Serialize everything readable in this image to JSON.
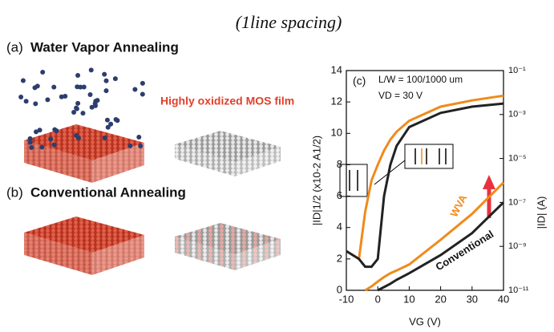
{
  "header": {
    "note": "(1line spacing)"
  },
  "panel_a": {
    "label": "(a)",
    "title": "Water Vapor Annealing",
    "film_label": "Highly oxidized MOS film"
  },
  "panel_b": {
    "label": "(b)",
    "title": "Conventional Annealing"
  },
  "chart_data": {
    "type": "line",
    "panel_label": "(c)",
    "annotations": [
      "L/W = 100/1000 um",
      "VD = 30 V"
    ],
    "xlabel": "VG (V)",
    "ylabel": "|ID|1/2 (x10-2 A1/2)",
    "y2label": "|ID| (A)",
    "x": [
      -10,
      -6,
      -4,
      -2,
      0,
      2,
      4,
      6,
      10,
      20,
      30,
      40
    ],
    "xlim": [
      -10,
      40
    ],
    "xticks": [
      -10,
      0,
      10,
      20,
      30,
      40
    ],
    "ylim": [
      0,
      14
    ],
    "yticks": [
      0,
      2,
      4,
      6,
      8,
      10,
      12,
      14
    ],
    "y2lim": [
      1e-11,
      0.1
    ],
    "y2scale": "log",
    "y2ticks": [
      {
        "value": 1e-11,
        "label": "10⁻¹¹"
      },
      {
        "value": 1e-09,
        "label": "10⁻⁹"
      },
      {
        "value": 1e-07,
        "label": "10⁻⁷"
      },
      {
        "value": 1e-05,
        "label": "10⁻⁵"
      },
      {
        "value": 0.001,
        "label": "10⁻³"
      },
      {
        "value": 0.1,
        "label": "10⁻¹"
      }
    ],
    "series": [
      {
        "color": "#f08a1c",
        "values": [
          2.5,
          2,
          5,
          7,
          8,
          8.9,
          9.6,
          10.1,
          10.8,
          11.7,
          12.1,
          12.4
        ]
      },
      {
        "color": "#222222",
        "values": [
          2.5,
          2,
          1.5,
          1.5,
          2,
          6,
          8,
          9.2,
          10.4,
          11.3,
          11.7,
          11.9
        ]
      },
      {
        "name": "WVA",
        "color": "#f08a1c",
        "axis": "y2",
        "values": [
          null,
          null,
          1e-11,
          1.5e-11,
          2.5e-11,
          4e-11,
          6e-11,
          8e-11,
          1.5e-10,
          2e-09,
          3e-08,
          8e-07
        ]
      },
      {
        "name": "Conventional",
        "color": "#222222",
        "axis": "y2",
        "values": [
          null,
          null,
          null,
          null,
          1e-11,
          1.4e-11,
          2e-11,
          3e-11,
          6e-11,
          4e-10,
          4e-09,
          1e-07
        ]
      }
    ]
  }
}
